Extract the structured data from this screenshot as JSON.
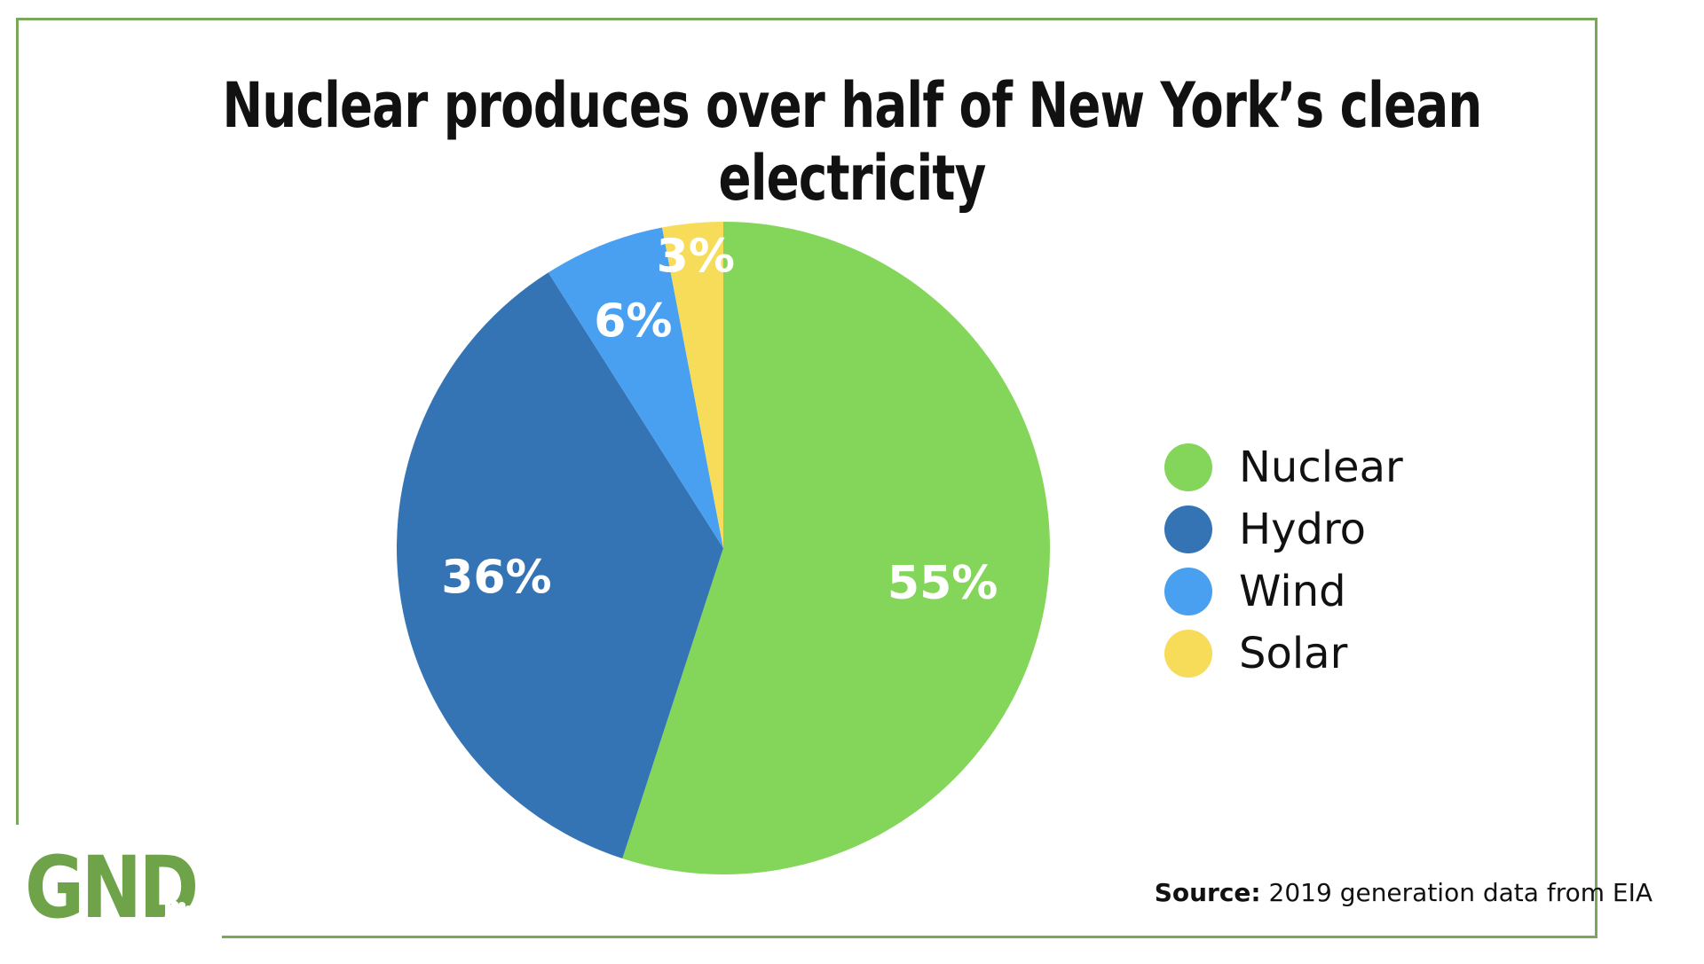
{
  "chart_data": {
    "type": "pie",
    "title": "Nuclear produces over half of New York’s clean electricity",
    "slices": [
      {
        "name": "Nuclear",
        "value": 55,
        "label": "55%",
        "color": "#84d65a"
      },
      {
        "name": "Hydro",
        "value": 36,
        "label": "36%",
        "color": "#3474b4"
      },
      {
        "name": "Wind",
        "value": 6,
        "label": "6%",
        "color": "#4aa0f0"
      },
      {
        "name": "Solar",
        "value": 3,
        "label": "3%",
        "color": "#f7dc5a"
      }
    ],
    "legend_position": "right"
  },
  "source": {
    "prefix": "Source:",
    "text": "2019 generation data from EIA"
  },
  "logo": {
    "text": "GND",
    "icon": "raised-fist-icon",
    "color": "#6ea34a"
  },
  "frame_color": "#7aa85a"
}
